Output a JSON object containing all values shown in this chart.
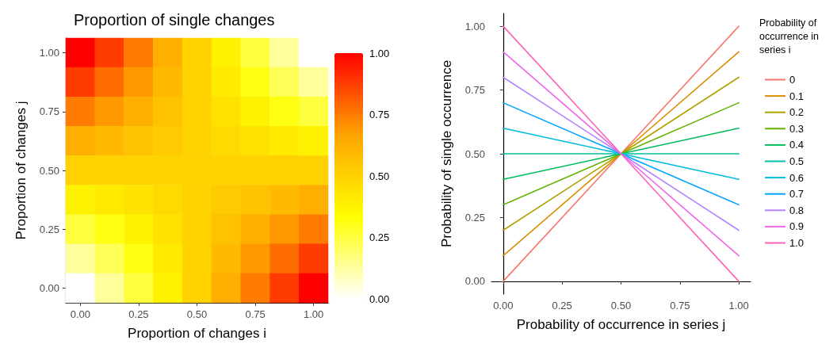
{
  "chart_data": [
    {
      "type": "heatmap",
      "title": "Proportion of single changes",
      "xlabel": "Proportion of changes i",
      "ylabel": "Proportion of changes j",
      "categories": [
        "0.00",
        null,
        "0.25",
        null,
        "0.50",
        null,
        "0.75",
        null,
        "1.00"
      ],
      "y_categories": [
        "1.00",
        null,
        "0.75",
        null,
        "0.50",
        null,
        "0.25",
        null,
        "0.00"
      ],
      "clim": [
        0,
        1
      ],
      "cticks": [
        {
          "value": 0,
          "label": "0.00"
        },
        0.25,
        {
          "value": 0.5,
          "label": "0.50"
        },
        0.75,
        {
          "value": 1,
          "label": "1.00"
        }
      ],
      "colors": [
        "#ffffff",
        "#ffff00",
        "#ffa500",
        "#ff0000"
      ],
      "cells": [
        [
          1,
          0.88,
          0.75,
          0.63,
          0.5,
          0.38,
          0.25,
          0.13,
          0
        ],
        [
          0.88,
          0.78,
          0.69,
          0.59,
          0.5,
          0.41,
          0.31,
          0.22,
          0.13
        ],
        [
          0.75,
          0.69,
          0.63,
          0.56,
          0.5,
          0.44,
          0.38,
          0.31,
          0.25
        ],
        [
          0.63,
          0.59,
          0.56,
          0.53,
          0.5,
          0.47,
          0.44,
          0.41,
          0.38
        ],
        [
          0.5,
          0.5,
          0.5,
          0.5,
          0.5,
          0.5,
          0.5,
          0.5,
          0.5
        ],
        [
          0.38,
          0.41,
          0.44,
          0.47,
          0.5,
          0.53,
          0.56,
          0.59,
          0.63
        ],
        [
          0.25,
          0.31,
          0.38,
          0.44,
          0.5,
          0.56,
          0.63,
          0.69,
          0.75
        ],
        [
          0.13,
          0.22,
          0.31,
          0.41,
          0.5,
          0.59,
          0.69,
          0.78,
          0.88
        ],
        [
          0,
          0.13,
          0.25,
          0.38,
          0.5,
          0.63,
          0.75,
          0.88,
          1
        ]
      ],
      "grid": false
    },
    {
      "type": "line",
      "xlabel": "Probability of occurrence in series j",
      "ylabel": "Probability of single occurrence",
      "legend_title": "Probability of occurrence in series i",
      "x": [
        0,
        0.5,
        1
      ],
      "xlim": [
        -0.05,
        1.05
      ],
      "xticks": [
        {
          "value": 0,
          "label": "0.00"
        },
        0.25,
        {
          "value": 0.5,
          "label": "0.50"
        },
        0.75,
        {
          "value": 1,
          "label": "1.00"
        }
      ],
      "ylim": [
        -0.05,
        1.05
      ],
      "yticks": [
        {
          "value": 0,
          "label": "0.00"
        },
        0.25,
        {
          "value": 0.5,
          "label": "0.50"
        },
        0.75,
        {
          "value": 1,
          "label": "1.00"
        }
      ],
      "grid": false,
      "legend": "right",
      "marker": "none",
      "line_style": "solid",
      "series": [
        {
          "name": "0",
          "color": "#f8766d",
          "values": [
            0,
            0.5,
            1
          ]
        },
        {
          "name": "0.1",
          "color": "#db8e00",
          "values": [
            0.1,
            0.5,
            0.9
          ]
        },
        {
          "name": "0.2",
          "color": "#aea200",
          "values": [
            0.2,
            0.5,
            0.8
          ]
        },
        {
          "name": "0.3",
          "color": "#64b200",
          "values": [
            0.3,
            0.5,
            0.7
          ]
        },
        {
          "name": "0.4",
          "color": "#00bd5c",
          "values": [
            0.4,
            0.5,
            0.6
          ]
        },
        {
          "name": "0.5",
          "color": "#00c1a7",
          "values": [
            0.5,
            0.5,
            0.5
          ]
        },
        {
          "name": "0.6",
          "color": "#00bade",
          "values": [
            0.6,
            0.5,
            0.4
          ]
        },
        {
          "name": "0.7",
          "color": "#00a6ff",
          "values": [
            0.7,
            0.5,
            0.3
          ]
        },
        {
          "name": "0.8",
          "color": "#b385ff",
          "values": [
            0.8,
            0.5,
            0.2
          ]
        },
        {
          "name": "0.9",
          "color": "#ef67eb",
          "values": [
            0.9,
            0.5,
            0.1
          ]
        },
        {
          "name": "1.0",
          "color": "#ff63b6",
          "values": [
            1,
            0.5,
            0
          ]
        }
      ]
    }
  ]
}
